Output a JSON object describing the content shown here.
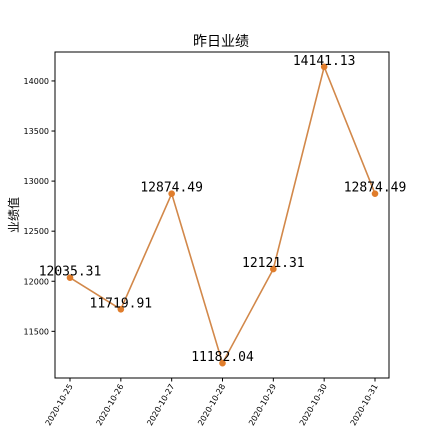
{
  "chart_data": {
    "type": "line",
    "title": "昨日业绩",
    "xlabel": "",
    "ylabel": "业绩值",
    "categories": [
      "2020-10-25",
      "2020-10-26",
      "2020-10-27",
      "2020-10-28",
      "2020-10-29",
      "2020-10-30",
      "2020-10-31"
    ],
    "values": [
      12035.31,
      11719.91,
      12874.49,
      11182.04,
      12121.31,
      14141.13,
      12874.49
    ],
    "data_labels": [
      "12035.31",
      "11719.91",
      "12874.49",
      "11182.04",
      "12121.31",
      "14141.13",
      "12874.49"
    ],
    "yticks": [
      11500,
      12000,
      12500,
      13000,
      13500,
      14000
    ],
    "ylim": [
      11034,
      14289
    ],
    "grid": false,
    "legend": "none",
    "line_color": "#d2884a",
    "marker_color": "#e07d2c"
  }
}
